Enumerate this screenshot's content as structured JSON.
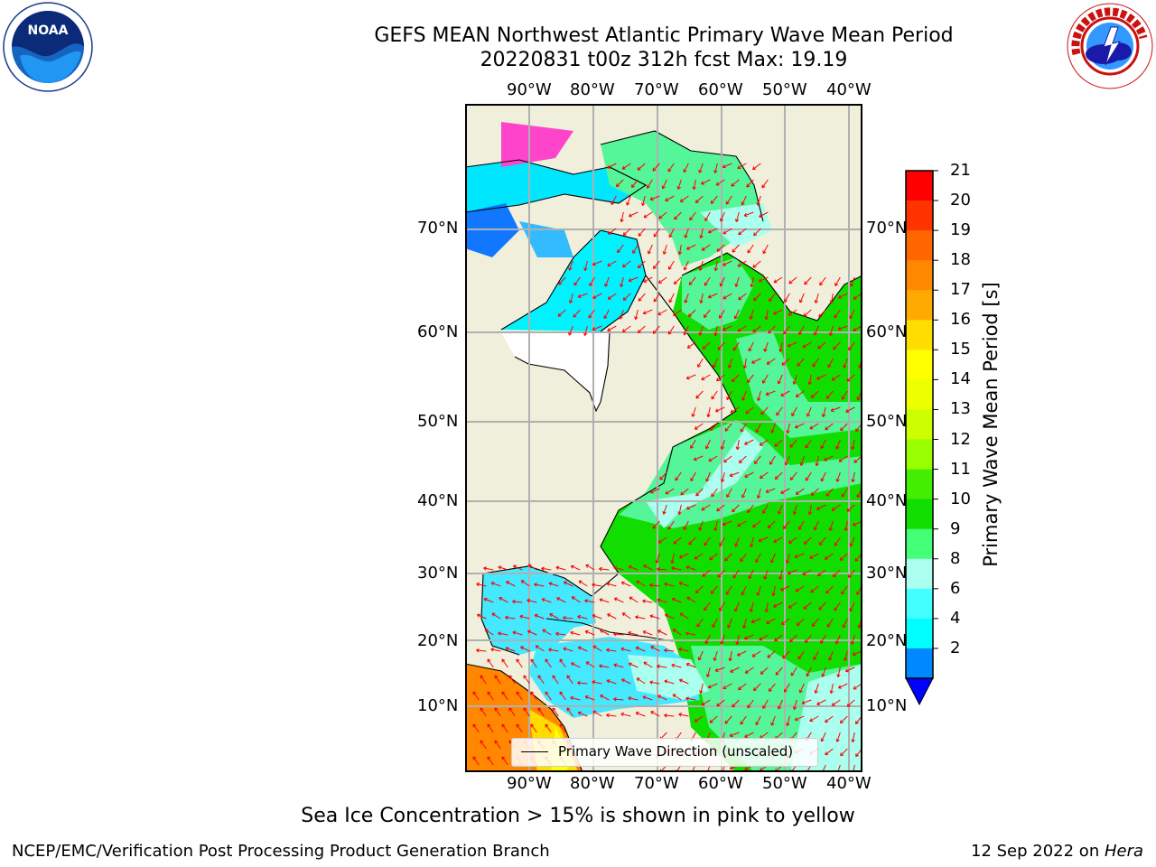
{
  "title": {
    "line1": "GEFS MEAN Northwest Atlantic Primary Wave Mean Period",
    "line2": "20220831 t00z 312h fcst   Max: 19.19"
  },
  "map": {
    "lon_labels": [
      "90°W",
      "80°W",
      "70°W",
      "60°W",
      "50°W",
      "40°W"
    ],
    "lat_labels": [
      "70°N",
      "60°N",
      "50°N",
      "40°N",
      "30°N",
      "20°N",
      "10°N"
    ],
    "land_color": "#efefdb",
    "legend_label": "Primary Wave Direction (unscaled)",
    "arrow_color": "#ff0000"
  },
  "colorbar": {
    "title": "Primary Wave Mean Period [s]",
    "ticks": [
      "21",
      "20",
      "19",
      "18",
      "17",
      "16",
      "15",
      "14",
      "13",
      "12",
      "11",
      "10",
      "9",
      "8",
      "6",
      "4",
      "2"
    ],
    "colors": [
      "#ff0000",
      "#ff3300",
      "#ff6600",
      "#ff8800",
      "#ffaa00",
      "#ffdd00",
      "#ffff00",
      "#eeff00",
      "#ccff00",
      "#99ff00",
      "#44ee00",
      "#11dd00",
      "#44ff77",
      "#aaffee",
      "#44ffff",
      "#00ffff",
      "#0088ff"
    ],
    "under_color": "#0000ff"
  },
  "caption": "Sea Ice Concentration > 15% is shown in pink to yellow",
  "footer": {
    "left": "NCEP/EMC/Verification Post Processing Product Generation Branch",
    "right_date": "12 Sep 2022 on ",
    "right_machine": "Hera"
  }
}
